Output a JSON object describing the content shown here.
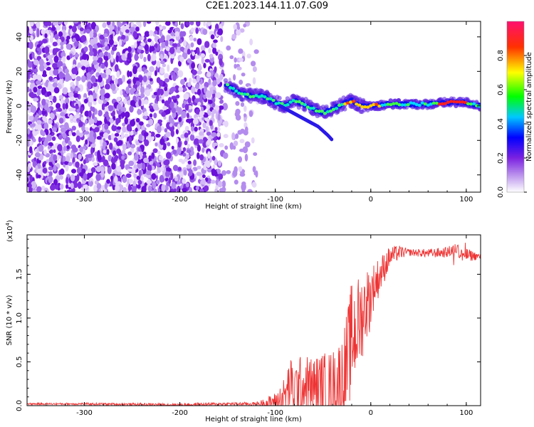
{
  "title": "C2E1.2023.144.11.07.G09",
  "chart_data": [
    {
      "type": "heatmap",
      "xlabel": "Height of straight line (km)",
      "ylabel": "Frequency (Hz)",
      "xlim": [
        -360,
        115
      ],
      "ylim": [
        -50,
        49
      ],
      "xticks": [
        -300,
        -200,
        -100,
        0,
        100
      ],
      "yticks": [
        -40,
        -20,
        0,
        20,
        40
      ],
      "colorbar": {
        "label": "Normalized spectral amplitude",
        "range": [
          0,
          1
        ],
        "ticks": [
          "0.0",
          "0.2",
          "0.4",
          "0.6",
          "0.8"
        ],
        "colormap": [
          "#ffffff",
          "#8a2be2",
          "#0000ff",
          "#00ffff",
          "#00ff00",
          "#ffff00",
          "#ff0000",
          "#ff1493"
        ]
      },
      "ridge": {
        "x": [
          -150,
          -140,
          -130,
          -120,
          -110,
          -100,
          -90,
          -80,
          -70,
          -60,
          -50,
          -40,
          -30,
          -20,
          -10,
          0,
          20,
          40,
          60,
          80,
          90,
          100,
          115
        ],
        "y": [
          12,
          8,
          6,
          6,
          5,
          2,
          0,
          3,
          1,
          -2,
          -4,
          -2,
          1,
          3,
          0,
          0,
          1,
          1,
          1,
          2,
          2,
          2,
          0
        ]
      },
      "branch": {
        "x": [
          -95,
          -85,
          -75,
          -65,
          -55,
          -45,
          -40
        ],
        "y": [
          0,
          -3,
          -6,
          -9,
          -12,
          -17,
          -20
        ]
      }
    },
    {
      "type": "line",
      "xlabel": "Height of straight line (km)",
      "ylabel": "SNR (10 * v/v)",
      "yscale_label": "(x10",
      "yscale_exp": "4",
      "yscale_close": ")",
      "xlim": [
        -360,
        115
      ],
      "ylim": [
        0,
        1.95
      ],
      "xticks": [
        -300,
        -200,
        -100,
        0,
        100
      ],
      "yticks": [
        "0.0",
        "0.5",
        "1.0",
        "1.5"
      ],
      "color": "#ee3333",
      "series": [
        {
          "x": [
            -360,
            -300,
            -200,
            -150,
            -120,
            -110,
            -100,
            -90,
            -85,
            -80,
            -70,
            -60,
            -50,
            -40,
            -30,
            -25,
            -20,
            -15,
            -10,
            -5,
            0,
            5,
            10,
            15,
            20,
            30,
            40,
            60,
            80,
            90,
            95,
            100,
            115
          ],
          "y": [
            0.02,
            0.02,
            0.01,
            0.02,
            0.02,
            0.03,
            0.05,
            0.15,
            0.3,
            0.25,
            0.3,
            0.28,
            0.3,
            0.3,
            0.4,
            0.6,
            0.9,
            1.0,
            1.1,
            1.25,
            1.3,
            1.4,
            1.5,
            1.6,
            1.7,
            1.75,
            1.75,
            1.74,
            1.75,
            1.8,
            1.72,
            1.72,
            1.7
          ]
        }
      ],
      "noise": {
        "x": [
          -360,
          -120,
          -100,
          -80,
          -60,
          -40,
          -20,
          0,
          20,
          40,
          80,
          100,
          115
        ],
        "amp": [
          0.01,
          0.02,
          0.1,
          0.3,
          0.3,
          0.35,
          0.55,
          0.3,
          0.12,
          0.04,
          0.06,
          0.08,
          0.03
        ]
      }
    }
  ]
}
